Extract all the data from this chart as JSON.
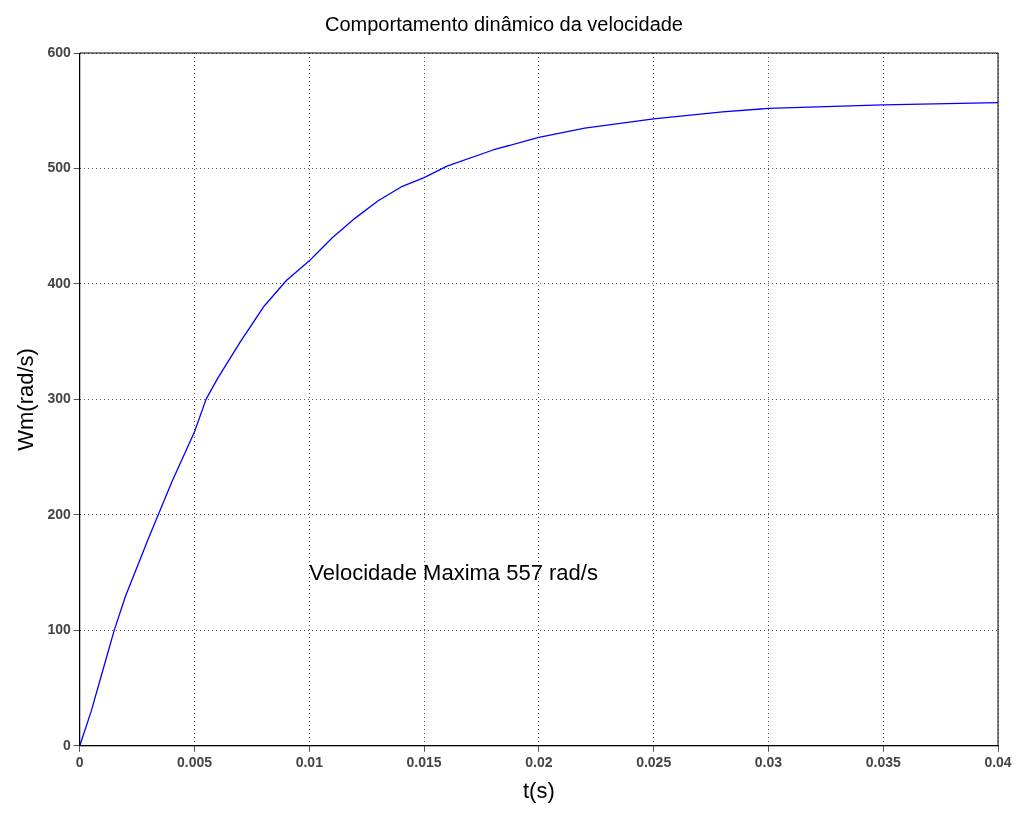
{
  "chart_data": {
    "type": "line",
    "title": "Comportamento dinâmico da velocidade",
    "xlabel": "t(s)",
    "ylabel": "Wm(rad/s)",
    "annotations": [
      "Velocidade Maxima 557 rad/s"
    ],
    "series": [
      {
        "color": "#0000ff",
        "x": [
          0,
          0.0005,
          0.001,
          0.0015,
          0.002,
          0.003,
          0.004,
          0.005,
          0.0055,
          0.006,
          0.007,
          0.008,
          0.009,
          0.01,
          0.011,
          0.012,
          0.013,
          0.014,
          0.015,
          0.016,
          0.018,
          0.02,
          0.022,
          0.025,
          0.028,
          0.03,
          0.035,
          0.04
        ],
        "values": [
          0,
          30,
          65,
          100,
          130,
          180,
          228,
          272,
          300,
          318,
          350,
          380,
          403,
          420,
          440,
          457,
          472,
          484,
          492,
          502,
          516,
          527,
          535,
          543,
          549,
          552,
          555,
          557
        ]
      }
    ],
    "xlim": [
      0,
      0.04
    ],
    "xticks": [
      0,
      0.005,
      0.01,
      0.015,
      0.02,
      0.025,
      0.03,
      0.035,
      0.04
    ],
    "ylim": [
      0,
      600
    ],
    "yticks": [
      0,
      100,
      200,
      300,
      400,
      500,
      600
    ],
    "grid": true,
    "legend": false,
    "marker": "none",
    "line_style": "solid"
  }
}
